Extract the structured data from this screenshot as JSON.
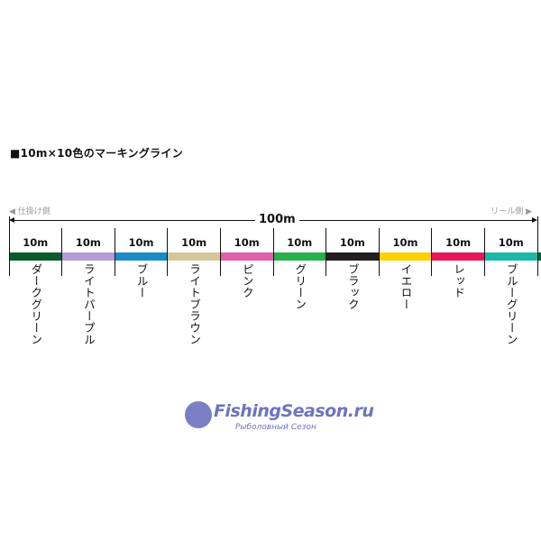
{
  "title": "■10m×10色のマーキングライン",
  "left_side_label": "◀ 仕掛け側",
  "right_side_label": "リール側 ▶",
  "total_length": "100m",
  "segments": [
    {
      "length": "10m",
      "color_name": "ダークグリーン",
      "color": "#0b5a2a"
    },
    {
      "length": "10m",
      "color_name": "ライトパープル",
      "color": "#b49ad6"
    },
    {
      "length": "10m",
      "color_name": "ブルー",
      "color": "#1a8cc8"
    },
    {
      "length": "10m",
      "color_name": "ライトブラウン",
      "color": "#d6c79a"
    },
    {
      "length": "10m",
      "color_name": "ピンク",
      "color": "#e060a8"
    },
    {
      "length": "10m",
      "color_name": "グリーン",
      "color": "#28b04a"
    },
    {
      "length": "10m",
      "color_name": "ブラック",
      "color": "#231f20"
    },
    {
      "length": "10m",
      "color_name": "イエロー",
      "color": "#ffd000"
    },
    {
      "length": "10m",
      "color_name": "レッド",
      "color": "#e8175a"
    },
    {
      "length": "10m",
      "color_name": "ブルーグリーン",
      "color": "#1bb8a8"
    }
  ],
  "watermark": {
    "main": "FishingSeason.ru",
    "sub": "Рыболовный Сезон"
  }
}
